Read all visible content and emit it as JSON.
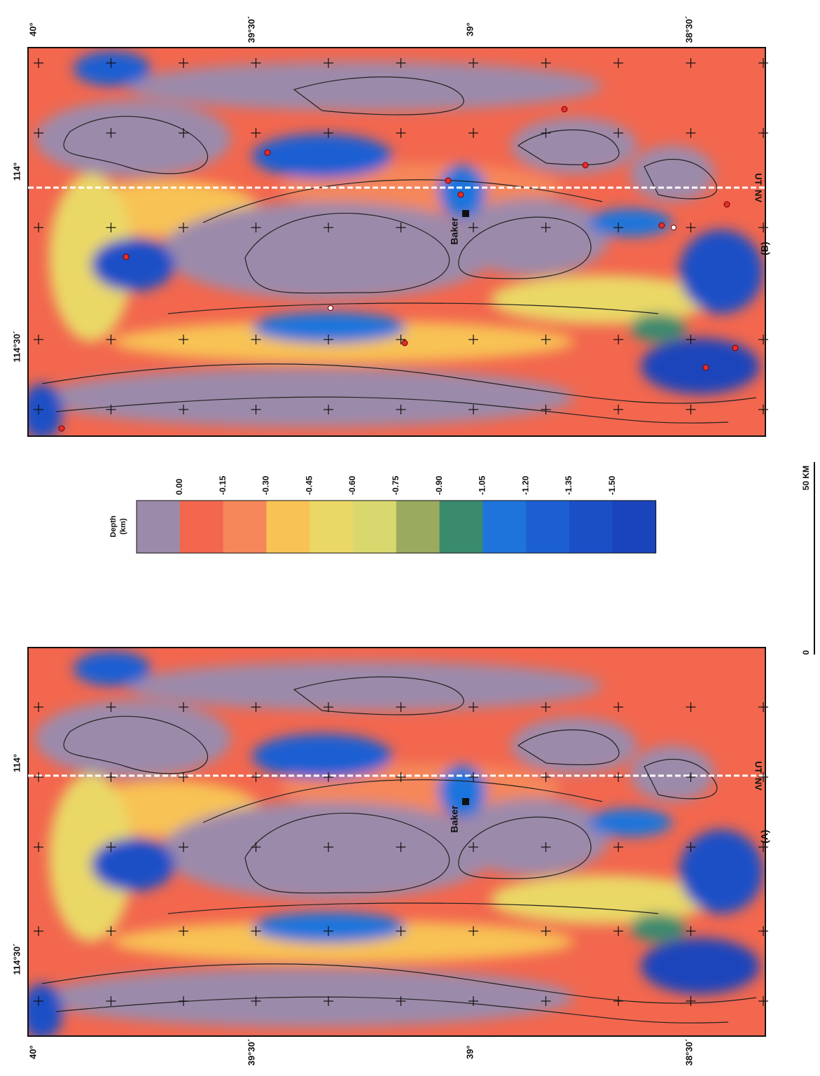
{
  "panels": [
    {
      "label": "(A)",
      "town": "Baker",
      "state_west": "NV",
      "state_east": "UT",
      "lat_labels": [
        "40°",
        "39°30´",
        "39°",
        "38°30´"
      ],
      "lon_labels": [
        "114°30´",
        "114°"
      ]
    },
    {
      "label": "(B)",
      "town": "Baker",
      "state_west": "NV",
      "state_east": "UT",
      "lat_labels": [
        "40°",
        "39°30´",
        "39°",
        "38°30´"
      ],
      "lon_labels": [
        "114°30´",
        "114°"
      ]
    }
  ],
  "colorbar": {
    "title_lines": [
      "Depth",
      "(km)"
    ],
    "ticks": [
      "0.00",
      "-0.15",
      "-0.30",
      "-0.45",
      "-0.60",
      "-0.75",
      "-0.90",
      "-1.05",
      "-1.20",
      "-1.35",
      "-1.50"
    ],
    "colors": [
      "#9c8aaa",
      "#f2674e",
      "#f5875a",
      "#f8c255",
      "#ead866",
      "#d9d86e",
      "#9aaa5e",
      "#3a8a6e",
      "#1f74dc",
      "#1c5fd2",
      "#1a4fc6",
      "#1a44bb"
    ]
  },
  "scale": {
    "start": "0",
    "end": "50 KM"
  }
}
